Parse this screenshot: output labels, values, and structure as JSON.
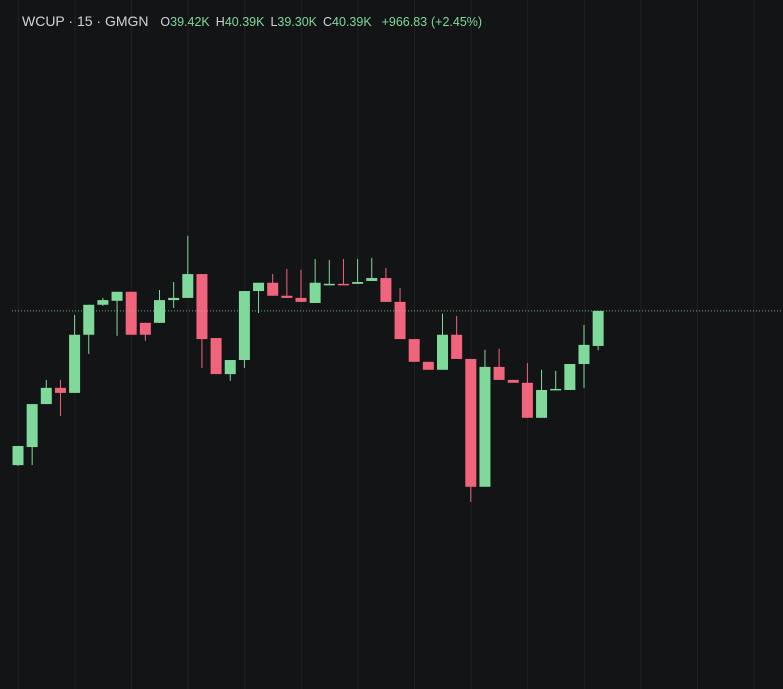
{
  "chart_data": {
    "type": "candlestick",
    "title": "WCUP · 15 · GMGN",
    "legend_items": [
      {
        "key": "O",
        "value": 39.42,
        "label": "39.42K"
      },
      {
        "key": "H",
        "value": 40.39,
        "label": "40.39K"
      },
      {
        "key": "L",
        "value": 39.3,
        "label": "39.30K"
      },
      {
        "key": "C",
        "value": 40.39,
        "label": "40.39K"
      }
    ],
    "change": {
      "value": 966.83,
      "label": "+966.83"
    },
    "change_percent": {
      "value": 2.45,
      "label": "(+2.45%)"
    },
    "up_color": "#7fd99b",
    "down_color": "#f0647c",
    "ylim": [
      29.92,
      49.0
    ],
    "last_price_line": true,
    "open": [
      36.12,
      36.62,
      37.81,
      38.26,
      38.12,
      39.73,
      40.56,
      40.67,
      40.92,
      40.06,
      40.06,
      40.69,
      40.75,
      41.41,
      39.64,
      38.64,
      39.03,
      40.94,
      41.17,
      40.81,
      40.75,
      40.61,
      41.11,
      41.14,
      41.14,
      41.22,
      41.3,
      40.64,
      39.61,
      38.98,
      38.76,
      39.73,
      39.06,
      35.52,
      38.84,
      38.48,
      38.4,
      37.43,
      38.2,
      38.2,
      38.92,
      39.42
    ],
    "high": [
      36.65,
      37.81,
      38.48,
      38.48,
      40.28,
      40.56,
      40.75,
      40.92,
      40.92,
      40.06,
      40.97,
      41.19,
      42.47,
      41.41,
      39.64,
      39.03,
      40.94,
      41.17,
      41.41,
      41.55,
      41.53,
      41.83,
      41.8,
      41.83,
      41.83,
      41.86,
      41.58,
      41.03,
      39.61,
      38.98,
      40.31,
      40.25,
      39.06,
      39.31,
      39.34,
      38.48,
      38.95,
      38.76,
      38.73,
      38.92,
      40.0,
      40.39
    ],
    "low": [
      36.1,
      36.12,
      37.81,
      37.48,
      38.12,
      39.2,
      40.53,
      39.7,
      39.73,
      39.56,
      40.06,
      40.47,
      40.75,
      38.81,
      38.64,
      38.45,
      38.81,
      40.33,
      40.81,
      40.75,
      40.64,
      40.61,
      41.11,
      41.11,
      41.14,
      41.22,
      40.64,
      39.61,
      38.98,
      38.76,
      38.76,
      39.06,
      35.1,
      35.52,
      38.48,
      38.4,
      37.43,
      37.43,
      38.2,
      38.2,
      38.26,
      39.3
    ],
    "close": [
      36.65,
      37.81,
      38.26,
      38.12,
      39.73,
      40.56,
      40.69,
      40.92,
      39.73,
      39.73,
      40.69,
      40.75,
      41.41,
      39.61,
      38.64,
      39.03,
      40.94,
      41.17,
      40.81,
      40.75,
      40.64,
      41.17,
      41.14,
      41.11,
      41.19,
      41.3,
      40.64,
      39.61,
      38.98,
      38.76,
      39.73,
      39.06,
      35.52,
      38.84,
      38.48,
      38.4,
      37.43,
      38.2,
      38.23,
      38.92,
      39.45,
      40.39
    ]
  }
}
